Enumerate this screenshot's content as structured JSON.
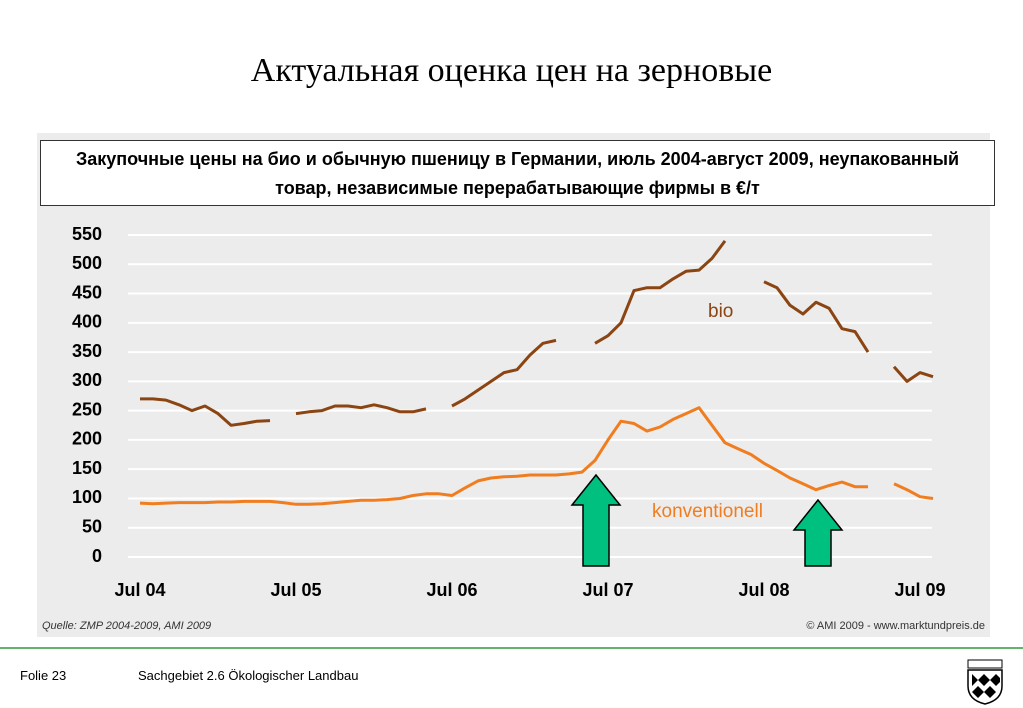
{
  "slide_title": "Актуальная оценка цен на зерновые",
  "chart_data": {
    "type": "line",
    "title": "Закупочные цены на био и обычную пшеницу в Германии, июль 2004-август 2009, неупакованный товар, независимые перерабатывающие фирмы в €/т",
    "categories": [
      "Jul 04",
      null,
      null,
      null,
      null,
      null,
      null,
      null,
      null,
      null,
      null,
      null,
      "Jul 05",
      null,
      null,
      null,
      null,
      null,
      null,
      null,
      null,
      null,
      null,
      null,
      "Jul 06",
      null,
      null,
      null,
      null,
      null,
      null,
      null,
      null,
      null,
      null,
      null,
      "Jul 07",
      null,
      null,
      null,
      null,
      null,
      null,
      null,
      null,
      null,
      null,
      null,
      "Jul 08",
      null,
      null,
      null,
      null,
      null,
      null,
      null,
      null,
      null,
      null,
      null,
      "Jul 09",
      null
    ],
    "series": [
      {
        "name": "bio",
        "color": "#8b4513",
        "values": [
          270,
          270,
          268,
          260,
          250,
          258,
          245,
          225,
          228,
          232,
          233,
          null,
          245,
          248,
          250,
          258,
          258,
          255,
          260,
          255,
          248,
          248,
          253,
          null,
          258,
          270,
          285,
          300,
          315,
          320,
          345,
          365,
          370,
          null,
          null,
          365,
          378,
          400,
          455,
          460,
          460,
          475,
          488,
          490,
          510,
          540,
          null,
          null,
          470,
          460,
          430,
          415,
          435,
          425,
          390,
          385,
          350,
          null,
          325,
          300,
          315,
          308
        ]
      },
      {
        "name": "konventionell",
        "color": "#f07d20",
        "values": [
          92,
          91,
          92,
          93,
          93,
          93,
          94,
          94,
          95,
          95,
          95,
          93,
          90,
          90,
          91,
          93,
          95,
          97,
          97,
          98,
          100,
          105,
          108,
          108,
          105,
          118,
          130,
          135,
          137,
          138,
          140,
          140,
          140,
          142,
          145,
          165,
          200,
          232,
          228,
          215,
          222,
          235,
          245,
          255,
          225,
          195,
          185,
          175,
          160,
          148,
          135,
          125,
          115,
          122,
          128,
          120,
          120,
          null,
          125,
          115,
          103,
          100
        ]
      }
    ],
    "ylim": [
      0,
      550
    ],
    "yticks": [
      0,
      50,
      100,
      150,
      200,
      250,
      300,
      350,
      400,
      450,
      500,
      550
    ],
    "grid": true,
    "source_left": "Quelle: ZMP 2004-2009,  AMI 2009",
    "source_right": "© AMI 2009 - www.marktundpreis.de"
  },
  "footer": {
    "slide_number": "Folie 23",
    "section": "Sachgebiet 2.6 Ökologischer Landbau"
  }
}
